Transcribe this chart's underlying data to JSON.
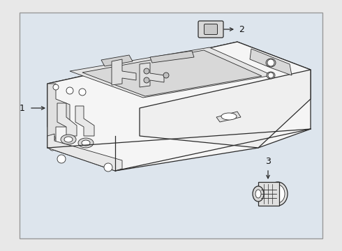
{
  "figsize": [
    4.9,
    3.6
  ],
  "dpi": 100,
  "bg_outer": "#e8e8e8",
  "bg_inner": "#dde4ec",
  "border_color": "#aaaaaa",
  "line_color": "#2a2a2a",
  "label_color": "#111111",
  "white": "#ffffff",
  "light_gray": "#f0f0f0",
  "mid_gray": "#d8d8d8"
}
